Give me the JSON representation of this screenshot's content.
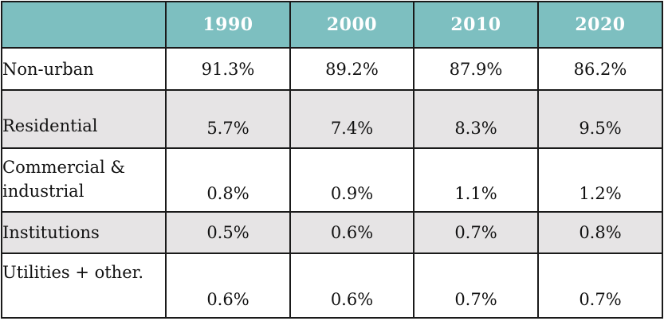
{
  "chart_data": {
    "type": "table",
    "columns": [
      "",
      "1990",
      "2000",
      "2010",
      "2020"
    ],
    "rows": [
      {
        "label": "Non-urban",
        "values": [
          "91.3%",
          "89.2%",
          "87.9%",
          "86.2%"
        ],
        "shaded": false
      },
      {
        "label": "Residential",
        "values": [
          "5.7%",
          "7.4%",
          "8.3%",
          "9.5%"
        ],
        "shaded": true
      },
      {
        "label": "Commercial & industrial",
        "values": [
          "0.8%",
          "0.9%",
          "1.1%",
          "1.2%"
        ],
        "shaded": false
      },
      {
        "label": "Institutions",
        "values": [
          "0.5%",
          "0.6%",
          "0.7%",
          "0.8%"
        ],
        "shaded": true
      },
      {
        "label": "Utilities + other.",
        "values": [
          "0.6%",
          "0.6%",
          "0.7%",
          "0.7%"
        ],
        "shaded": false
      }
    ],
    "colors": {
      "header_bg": "#7dbfc0",
      "header_text": "#ffffff",
      "shaded_row": "#e6e4e5",
      "border": "#1a1a1a"
    }
  }
}
